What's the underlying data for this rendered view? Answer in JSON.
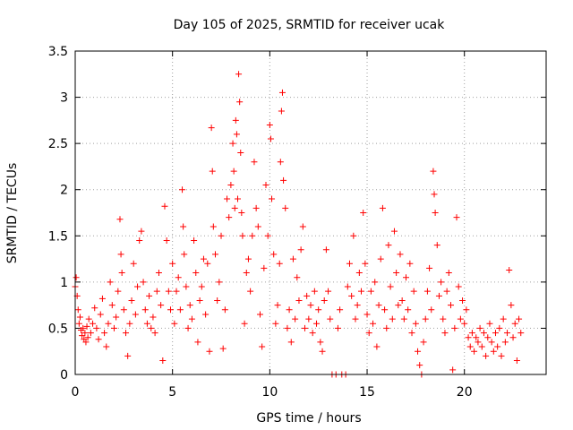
{
  "chart_data": {
    "type": "scatter",
    "title": "Day 105 of 2025, SRMTID for receiver ucak",
    "xlabel": "GPS time / hours",
    "ylabel": "SRMTID / TECUs",
    "xlim": [
      0,
      24.2
    ],
    "ylim": [
      0,
      3.5
    ],
    "xticks": [
      0,
      5,
      10,
      15,
      20
    ],
    "xtick_labels": [
      "0",
      "5",
      "10",
      "15",
      "20"
    ],
    "yticks": [
      0,
      0.5,
      1,
      1.5,
      2,
      2.5,
      3,
      3.5
    ],
    "ytick_labels": [
      "0",
      "0.5",
      "1",
      "1.5",
      "2",
      "2.5",
      "3",
      "3.5"
    ],
    "grid": true,
    "marker": "+",
    "color": "#ff0000",
    "series": [
      {
        "name": "SRMTID",
        "points": [
          [
            0.0,
            0.95
          ],
          [
            0.05,
            1.05
          ],
          [
            0.1,
            0.85
          ],
          [
            0.15,
            0.7
          ],
          [
            0.2,
            0.55
          ],
          [
            0.25,
            0.62
          ],
          [
            0.3,
            0.48
          ],
          [
            0.35,
            0.42
          ],
          [
            0.4,
            0.5
          ],
          [
            0.45,
            0.38
          ],
          [
            0.5,
            0.45
          ],
          [
            0.55,
            0.35
          ],
          [
            0.6,
            0.52
          ],
          [
            0.65,
            0.4
          ],
          [
            0.7,
            0.6
          ],
          [
            0.8,
            0.45
          ],
          [
            0.9,
            0.55
          ],
          [
            1.0,
            0.72
          ],
          [
            1.1,
            0.5
          ],
          [
            1.2,
            0.38
          ],
          [
            1.3,
            0.65
          ],
          [
            1.4,
            0.82
          ],
          [
            1.5,
            0.45
          ],
          [
            1.6,
            0.3
          ],
          [
            1.7,
            0.55
          ],
          [
            1.8,
            1.0
          ],
          [
            1.9,
            0.75
          ],
          [
            2.0,
            0.5
          ],
          [
            2.1,
            0.62
          ],
          [
            2.2,
            0.9
          ],
          [
            2.3,
            1.68
          ],
          [
            2.35,
            1.3
          ],
          [
            2.4,
            1.1
          ],
          [
            2.5,
            0.7
          ],
          [
            2.6,
            0.45
          ],
          [
            2.7,
            0.2
          ],
          [
            2.8,
            0.55
          ],
          [
            2.9,
            0.8
          ],
          [
            3.0,
            1.2
          ],
          [
            3.1,
            0.65
          ],
          [
            3.2,
            0.95
          ],
          [
            3.3,
            1.45
          ],
          [
            3.4,
            1.55
          ],
          [
            3.5,
            1.0
          ],
          [
            3.6,
            0.7
          ],
          [
            3.7,
            0.55
          ],
          [
            3.8,
            0.85
          ],
          [
            3.9,
            0.5
          ],
          [
            4.0,
            0.62
          ],
          [
            4.1,
            0.45
          ],
          [
            4.2,
            0.9
          ],
          [
            4.3,
            1.1
          ],
          [
            4.4,
            0.75
          ],
          [
            4.5,
            0.15
          ],
          [
            4.6,
            1.82
          ],
          [
            4.7,
            1.45
          ],
          [
            4.8,
            0.9
          ],
          [
            4.9,
            0.7
          ],
          [
            5.0,
            1.2
          ],
          [
            5.1,
            0.55
          ],
          [
            5.2,
            0.9
          ],
          [
            5.3,
            1.05
          ],
          [
            5.4,
            0.7
          ],
          [
            5.5,
            2.0
          ],
          [
            5.55,
            1.6
          ],
          [
            5.6,
            1.3
          ],
          [
            5.7,
            0.95
          ],
          [
            5.8,
            0.5
          ],
          [
            5.9,
            0.75
          ],
          [
            6.0,
            0.6
          ],
          [
            6.1,
            1.45
          ],
          [
            6.2,
            1.1
          ],
          [
            6.3,
            0.35
          ],
          [
            6.4,
            0.8
          ],
          [
            6.5,
            0.95
          ],
          [
            6.6,
            1.25
          ],
          [
            6.7,
            0.65
          ],
          [
            6.8,
            1.2
          ],
          [
            6.9,
            0.25
          ],
          [
            7.0,
            2.67
          ],
          [
            7.05,
            2.2
          ],
          [
            7.1,
            1.6
          ],
          [
            7.2,
            1.3
          ],
          [
            7.3,
            0.8
          ],
          [
            7.4,
            1.0
          ],
          [
            7.5,
            1.5
          ],
          [
            7.6,
            0.28
          ],
          [
            7.7,
            0.7
          ],
          [
            7.8,
            1.9
          ],
          [
            7.9,
            1.7
          ],
          [
            8.0,
            2.05
          ],
          [
            8.1,
            2.5
          ],
          [
            8.15,
            2.2
          ],
          [
            8.2,
            1.8
          ],
          [
            8.25,
            2.75
          ],
          [
            8.3,
            2.6
          ],
          [
            8.35,
            1.9
          ],
          [
            8.4,
            3.25
          ],
          [
            8.45,
            2.95
          ],
          [
            8.5,
            2.4
          ],
          [
            8.55,
            1.75
          ],
          [
            8.6,
            1.5
          ],
          [
            8.7,
            0.55
          ],
          [
            8.8,
            1.1
          ],
          [
            8.9,
            1.25
          ],
          [
            9.0,
            0.9
          ],
          [
            9.1,
            1.5
          ],
          [
            9.2,
            2.3
          ],
          [
            9.3,
            1.8
          ],
          [
            9.4,
            1.6
          ],
          [
            9.5,
            0.65
          ],
          [
            9.6,
            0.3
          ],
          [
            9.7,
            1.15
          ],
          [
            9.8,
            2.05
          ],
          [
            9.9,
            1.5
          ],
          [
            10.0,
            2.7
          ],
          [
            10.05,
            2.55
          ],
          [
            10.1,
            1.9
          ],
          [
            10.2,
            1.3
          ],
          [
            10.3,
            0.55
          ],
          [
            10.4,
            0.75
          ],
          [
            10.5,
            1.2
          ],
          [
            10.55,
            2.3
          ],
          [
            10.6,
            2.85
          ],
          [
            10.65,
            3.05
          ],
          [
            10.7,
            2.1
          ],
          [
            10.8,
            1.8
          ],
          [
            10.9,
            0.5
          ],
          [
            11.0,
            0.7
          ],
          [
            11.1,
            0.35
          ],
          [
            11.2,
            1.25
          ],
          [
            11.3,
            0.6
          ],
          [
            11.4,
            1.05
          ],
          [
            11.5,
            0.8
          ],
          [
            11.6,
            1.35
          ],
          [
            11.7,
            1.6
          ],
          [
            11.8,
            0.5
          ],
          [
            11.9,
            0.85
          ],
          [
            12.0,
            0.6
          ],
          [
            12.1,
            0.75
          ],
          [
            12.2,
            0.45
          ],
          [
            12.3,
            0.9
          ],
          [
            12.4,
            0.55
          ],
          [
            12.5,
            0.7
          ],
          [
            12.6,
            0.35
          ],
          [
            12.7,
            0.25
          ],
          [
            12.8,
            0.8
          ],
          [
            12.9,
            1.35
          ],
          [
            13.0,
            0.9
          ],
          [
            13.1,
            0.6
          ],
          [
            13.2,
            0.0
          ],
          [
            13.4,
            0.0
          ],
          [
            13.5,
            0.5
          ],
          [
            13.6,
            0.7
          ],
          [
            13.7,
            0.0
          ],
          [
            13.9,
            0.0
          ],
          [
            14.0,
            0.95
          ],
          [
            14.1,
            1.2
          ],
          [
            14.2,
            0.85
          ],
          [
            14.3,
            1.5
          ],
          [
            14.4,
            0.6
          ],
          [
            14.5,
            0.75
          ],
          [
            14.6,
            1.1
          ],
          [
            14.7,
            0.9
          ],
          [
            14.8,
            1.75
          ],
          [
            14.9,
            1.2
          ],
          [
            15.0,
            0.65
          ],
          [
            15.1,
            0.45
          ],
          [
            15.2,
            0.9
          ],
          [
            15.3,
            0.55
          ],
          [
            15.4,
            1.0
          ],
          [
            15.5,
            0.3
          ],
          [
            15.6,
            0.75
          ],
          [
            15.7,
            1.25
          ],
          [
            15.8,
            1.8
          ],
          [
            15.9,
            0.7
          ],
          [
            16.0,
            0.5
          ],
          [
            16.1,
            1.4
          ],
          [
            16.2,
            0.95
          ],
          [
            16.3,
            0.6
          ],
          [
            16.4,
            1.55
          ],
          [
            16.5,
            1.1
          ],
          [
            16.6,
            0.75
          ],
          [
            16.7,
            1.3
          ],
          [
            16.8,
            0.8
          ],
          [
            16.9,
            0.6
          ],
          [
            17.0,
            1.05
          ],
          [
            17.1,
            0.7
          ],
          [
            17.2,
            1.2
          ],
          [
            17.3,
            0.45
          ],
          [
            17.4,
            0.9
          ],
          [
            17.5,
            0.55
          ],
          [
            17.6,
            0.25
          ],
          [
            17.7,
            0.1
          ],
          [
            17.8,
            0.0
          ],
          [
            17.9,
            0.35
          ],
          [
            18.0,
            0.6
          ],
          [
            18.1,
            0.9
          ],
          [
            18.2,
            1.15
          ],
          [
            18.3,
            0.7
          ],
          [
            18.4,
            2.2
          ],
          [
            18.45,
            1.95
          ],
          [
            18.5,
            1.75
          ],
          [
            18.6,
            1.4
          ],
          [
            18.7,
            0.85
          ],
          [
            18.8,
            1.0
          ],
          [
            18.9,
            0.6
          ],
          [
            19.0,
            0.45
          ],
          [
            19.1,
            0.9
          ],
          [
            19.2,
            1.1
          ],
          [
            19.3,
            0.75
          ],
          [
            19.4,
            0.05
          ],
          [
            19.5,
            0.5
          ],
          [
            19.6,
            1.7
          ],
          [
            19.7,
            0.95
          ],
          [
            19.8,
            0.6
          ],
          [
            19.9,
            0.8
          ],
          [
            20.0,
            0.55
          ],
          [
            20.1,
            0.7
          ],
          [
            20.2,
            0.4
          ],
          [
            20.3,
            0.3
          ],
          [
            20.4,
            0.45
          ],
          [
            20.5,
            0.25
          ],
          [
            20.6,
            0.4
          ],
          [
            20.7,
            0.35
          ],
          [
            20.8,
            0.5
          ],
          [
            20.9,
            0.3
          ],
          [
            21.0,
            0.45
          ],
          [
            21.1,
            0.2
          ],
          [
            21.2,
            0.4
          ],
          [
            21.3,
            0.55
          ],
          [
            21.4,
            0.35
          ],
          [
            21.5,
            0.25
          ],
          [
            21.6,
            0.45
          ],
          [
            21.7,
            0.3
          ],
          [
            21.8,
            0.5
          ],
          [
            21.9,
            0.2
          ],
          [
            22.0,
            0.6
          ],
          [
            22.1,
            0.35
          ],
          [
            22.2,
            0.45
          ],
          [
            22.3,
            1.13
          ],
          [
            22.4,
            0.75
          ],
          [
            22.5,
            0.4
          ],
          [
            22.6,
            0.55
          ],
          [
            22.7,
            0.15
          ],
          [
            22.8,
            0.6
          ],
          [
            22.9,
            0.45
          ]
        ]
      }
    ]
  }
}
